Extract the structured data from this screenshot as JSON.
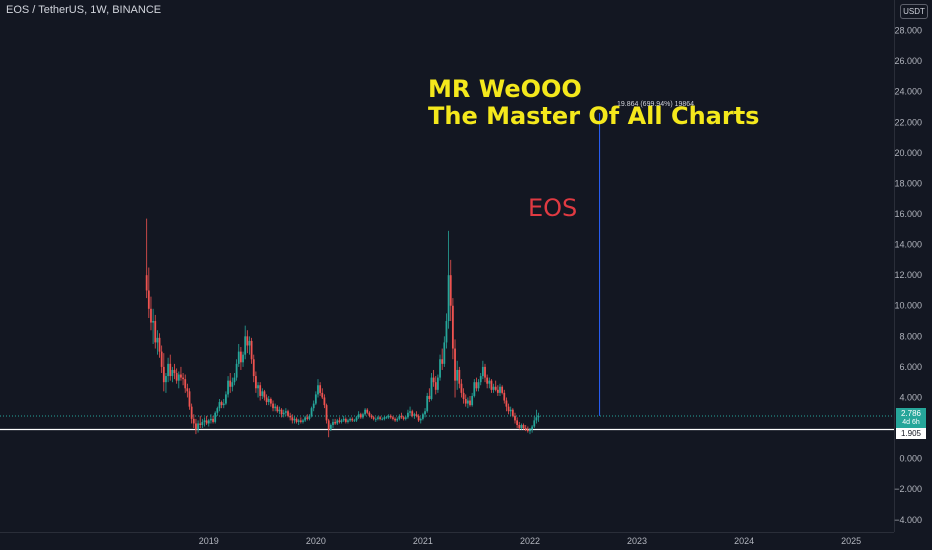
{
  "header": {
    "symbol": "EOS / TetherUS",
    "interval": "1W",
    "exchange": "BINANCE"
  },
  "currency_badge": "USDT",
  "annotations": {
    "title_line1": "MR WeOOO",
    "title_line2": "The Master Of All Charts",
    "coin_label": "EOS",
    "measure_label": "19.864 (699.94%) 19864"
  },
  "price_tags": {
    "last_price": "2.786",
    "countdown": "4d 6h",
    "hline_price": "1.905"
  },
  "colors": {
    "background": "#131722",
    "up": "#26a69a",
    "down": "#ef5350",
    "grid": "#1c2030",
    "axis_text": "#b2b5be",
    "title_annotation": "#f4e81c",
    "eos_annotation": "#e03a42",
    "measure_line": "#2962ff",
    "hline": "#ffffff"
  },
  "chart_data": {
    "type": "candlestick",
    "title": "EOS / TetherUS, 1W, BINANCE",
    "xlabel": "",
    "ylabel": "",
    "ylim": [
      -4.8,
      30.0
    ],
    "xlim": [
      2017.05,
      2025.4
    ],
    "yticks": [
      "28.000",
      "26.000",
      "24.000",
      "22.000",
      "20.000",
      "18.000",
      "16.000",
      "14.000",
      "12.000",
      "10.000",
      "8.000",
      "6.000",
      "4.000",
      "2.000",
      "0.000",
      "−2.000",
      "−4.000"
    ],
    "xticks": [
      "2019",
      "2020",
      "2021",
      "2022",
      "2023",
      "2024",
      "2025"
    ],
    "grid": false,
    "horizontal_line": 1.905,
    "last_price_line": 2.786,
    "measure_line": {
      "x": 2022.65,
      "from": 2.8,
      "to": 22.6
    },
    "ohlc": [
      [
        2018.42,
        12.0,
        15.7,
        10.5,
        11.0
      ],
      [
        2018.44,
        11.0,
        12.5,
        9.2,
        9.8
      ],
      [
        2018.46,
        9.8,
        10.6,
        8.4,
        8.9
      ],
      [
        2018.48,
        8.9,
        9.8,
        7.5,
        9.0
      ],
      [
        2018.5,
        9.0,
        9.4,
        7.2,
        7.6
      ],
      [
        2018.52,
        7.6,
        8.4,
        6.8,
        7.9
      ],
      [
        2018.54,
        7.9,
        8.2,
        6.6,
        7.0
      ],
      [
        2018.56,
        7.0,
        7.4,
        5.6,
        6.0
      ],
      [
        2018.58,
        6.0,
        6.9,
        4.4,
        5.0
      ],
      [
        2018.6,
        5.0,
        5.6,
        4.3,
        5.4
      ],
      [
        2018.62,
        5.4,
        6.6,
        5.0,
        6.2
      ],
      [
        2018.64,
        6.2,
        6.8,
        5.1,
        5.4
      ],
      [
        2018.66,
        5.4,
        6.0,
        5.0,
        5.8
      ],
      [
        2018.68,
        5.8,
        6.2,
        5.2,
        5.6
      ],
      [
        2018.7,
        5.6,
        5.9,
        4.9,
        5.1
      ],
      [
        2018.72,
        5.1,
        5.7,
        4.6,
        5.5
      ],
      [
        2018.74,
        5.5,
        6.0,
        5.1,
        5.3
      ],
      [
        2018.76,
        5.3,
        5.6,
        4.8,
        5.2
      ],
      [
        2018.78,
        5.2,
        5.5,
        4.3,
        4.6
      ],
      [
        2018.8,
        4.6,
        4.9,
        4.0,
        4.4
      ],
      [
        2018.82,
        4.4,
        4.6,
        3.2,
        3.4
      ],
      [
        2018.84,
        3.4,
        3.6,
        2.3,
        2.6
      ],
      [
        2018.86,
        2.6,
        2.9,
        2.0,
        2.3
      ],
      [
        2018.88,
        2.3,
        2.6,
        1.6,
        1.9
      ],
      [
        2018.9,
        1.9,
        2.5,
        1.7,
        2.3
      ],
      [
        2018.92,
        2.3,
        2.8,
        2.0,
        2.2
      ],
      [
        2018.94,
        2.2,
        2.6,
        2.0,
        2.4
      ],
      [
        2018.96,
        2.4,
        2.7,
        2.1,
        2.5
      ],
      [
        2018.98,
        2.5,
        2.8,
        2.2,
        2.3
      ],
      [
        2019.0,
        2.3,
        2.6,
        2.1,
        2.5
      ],
      [
        2019.02,
        2.5,
        2.9,
        2.3,
        2.6
      ],
      [
        2019.04,
        2.6,
        2.8,
        2.3,
        2.4
      ],
      [
        2019.06,
        2.4,
        3.1,
        2.3,
        3.0
      ],
      [
        2019.08,
        3.0,
        3.4,
        2.8,
        3.3
      ],
      [
        2019.1,
        3.3,
        3.9,
        3.1,
        3.7
      ],
      [
        2019.12,
        3.7,
        3.8,
        3.3,
        3.5
      ],
      [
        2019.14,
        3.5,
        3.9,
        3.3,
        3.6
      ],
      [
        2019.16,
        3.6,
        4.4,
        3.5,
        4.2
      ],
      [
        2019.18,
        4.2,
        5.4,
        4.0,
        5.1
      ],
      [
        2019.2,
        5.1,
        5.6,
        4.3,
        4.7
      ],
      [
        2019.22,
        4.7,
        5.3,
        4.4,
        5.0
      ],
      [
        2019.24,
        5.0,
        5.6,
        4.8,
        5.3
      ],
      [
        2019.26,
        5.3,
        6.5,
        5.1,
        6.2
      ],
      [
        2019.28,
        6.2,
        7.5,
        6.0,
        7.0
      ],
      [
        2019.3,
        7.0,
        7.3,
        5.8,
        6.3
      ],
      [
        2019.32,
        6.3,
        7.0,
        6.0,
        6.8
      ],
      [
        2019.34,
        6.8,
        8.7,
        6.5,
        8.0
      ],
      [
        2019.36,
        8.0,
        8.4,
        6.9,
        7.4
      ],
      [
        2019.38,
        7.4,
        8.0,
        6.8,
        7.7
      ],
      [
        2019.4,
        7.7,
        7.9,
        6.2,
        6.5
      ],
      [
        2019.42,
        6.5,
        6.8,
        5.0,
        5.4
      ],
      [
        2019.44,
        5.4,
        5.7,
        4.3,
        4.6
      ],
      [
        2019.46,
        4.6,
        5.0,
        4.0,
        4.8
      ],
      [
        2019.48,
        4.8,
        5.0,
        3.8,
        4.1
      ],
      [
        2019.5,
        4.1,
        4.6,
        3.9,
        4.4
      ],
      [
        2019.52,
        4.4,
        4.5,
        3.8,
        4.0
      ],
      [
        2019.54,
        4.0,
        4.2,
        3.5,
        3.7
      ],
      [
        2019.56,
        3.7,
        4.1,
        3.5,
        3.9
      ],
      [
        2019.58,
        3.9,
        4.0,
        3.4,
        3.6
      ],
      [
        2019.6,
        3.6,
        3.8,
        3.1,
        3.3
      ],
      [
        2019.62,
        3.3,
        3.6,
        3.1,
        3.4
      ],
      [
        2019.64,
        3.4,
        3.5,
        3.0,
        3.1
      ],
      [
        2019.66,
        3.1,
        3.4,
        2.9,
        3.2
      ],
      [
        2019.68,
        3.2,
        3.3,
        2.7,
        2.9
      ],
      [
        2019.7,
        2.9,
        3.2,
        2.7,
        3.0
      ],
      [
        2019.72,
        3.0,
        3.3,
        2.8,
        3.1
      ],
      [
        2019.74,
        3.1,
        3.2,
        2.7,
        2.8
      ],
      [
        2019.76,
        2.8,
        3.0,
        2.5,
        2.7
      ],
      [
        2019.78,
        2.7,
        2.9,
        2.3,
        2.5
      ],
      [
        2019.8,
        2.5,
        2.8,
        2.3,
        2.6
      ],
      [
        2019.82,
        2.6,
        2.7,
        2.3,
        2.4
      ],
      [
        2019.84,
        2.4,
        2.6,
        2.2,
        2.5
      ],
      [
        2019.86,
        2.5,
        2.7,
        2.3,
        2.4
      ],
      [
        2019.88,
        2.4,
        2.6,
        2.3,
        2.5
      ],
      [
        2019.9,
        2.5,
        2.8,
        2.4,
        2.7
      ],
      [
        2019.92,
        2.7,
        2.9,
        2.5,
        2.6
      ],
      [
        2019.94,
        2.6,
        2.9,
        2.5,
        2.8
      ],
      [
        2019.96,
        2.8,
        3.4,
        2.7,
        3.3
      ],
      [
        2019.98,
        3.3,
        3.8,
        3.1,
        3.6
      ],
      [
        2020.0,
        3.6,
        4.4,
        3.5,
        4.2
      ],
      [
        2020.02,
        4.2,
        5.2,
        4.0,
        4.8
      ],
      [
        2020.04,
        4.8,
        5.0,
        4.1,
        4.3
      ],
      [
        2020.06,
        4.3,
        4.6,
        3.9,
        4.0
      ],
      [
        2020.08,
        4.0,
        4.2,
        3.3,
        3.5
      ],
      [
        2020.1,
        3.5,
        3.6,
        2.3,
        2.5
      ],
      [
        2020.12,
        2.5,
        2.6,
        1.4,
        1.9
      ],
      [
        2020.14,
        1.9,
        2.3,
        1.8,
        2.2
      ],
      [
        2020.16,
        2.2,
        2.6,
        2.0,
        2.4
      ],
      [
        2020.18,
        2.4,
        2.6,
        2.2,
        2.3
      ],
      [
        2020.2,
        2.3,
        2.6,
        2.2,
        2.5
      ],
      [
        2020.22,
        2.5,
        2.7,
        2.3,
        2.4
      ],
      [
        2020.24,
        2.4,
        2.6,
        2.3,
        2.5
      ],
      [
        2020.26,
        2.5,
        2.8,
        2.4,
        2.6
      ],
      [
        2020.28,
        2.6,
        2.7,
        2.3,
        2.4
      ],
      [
        2020.3,
        2.4,
        2.6,
        2.3,
        2.5
      ],
      [
        2020.32,
        2.5,
        2.7,
        2.4,
        2.6
      ],
      [
        2020.34,
        2.6,
        2.7,
        2.4,
        2.5
      ],
      [
        2020.36,
        2.5,
        2.6,
        2.4,
        2.5
      ],
      [
        2020.38,
        2.5,
        2.8,
        2.4,
        2.7
      ],
      [
        2020.4,
        2.7,
        3.1,
        2.6,
        2.9
      ],
      [
        2020.42,
        2.9,
        3.0,
        2.6,
        2.7
      ],
      [
        2020.44,
        2.7,
        3.0,
        2.6,
        2.9
      ],
      [
        2020.46,
        2.9,
        3.3,
        2.8,
        3.2
      ],
      [
        2020.48,
        3.2,
        3.3,
        2.9,
        3.0
      ],
      [
        2020.5,
        3.0,
        3.1,
        2.7,
        2.8
      ],
      [
        2020.52,
        2.8,
        2.9,
        2.6,
        2.7
      ],
      [
        2020.54,
        2.7,
        2.8,
        2.5,
        2.6
      ],
      [
        2020.56,
        2.6,
        2.7,
        2.4,
        2.6
      ],
      [
        2020.58,
        2.6,
        2.8,
        2.5,
        2.7
      ],
      [
        2020.6,
        2.7,
        2.8,
        2.5,
        2.6
      ],
      [
        2020.62,
        2.6,
        2.7,
        2.5,
        2.6
      ],
      [
        2020.64,
        2.6,
        2.8,
        2.5,
        2.7
      ],
      [
        2020.66,
        2.7,
        2.8,
        2.6,
        2.7
      ],
      [
        2020.68,
        2.7,
        2.9,
        2.6,
        2.8
      ],
      [
        2020.7,
        2.8,
        2.9,
        2.6,
        2.7
      ],
      [
        2020.72,
        2.7,
        2.8,
        2.5,
        2.6
      ],
      [
        2020.74,
        2.6,
        2.7,
        2.4,
        2.5
      ],
      [
        2020.76,
        2.5,
        2.7,
        2.4,
        2.6
      ],
      [
        2020.78,
        2.6,
        2.9,
        2.5,
        2.8
      ],
      [
        2020.8,
        2.8,
        3.0,
        2.6,
        2.7
      ],
      [
        2020.82,
        2.7,
        2.8,
        2.5,
        2.6
      ],
      [
        2020.84,
        2.6,
        2.8,
        2.5,
        2.7
      ],
      [
        2020.86,
        2.7,
        3.2,
        2.6,
        3.0
      ],
      [
        2020.88,
        3.0,
        3.4,
        2.8,
        3.1
      ],
      [
        2020.9,
        3.1,
        3.2,
        2.7,
        2.8
      ],
      [
        2020.92,
        2.8,
        3.0,
        2.6,
        2.9
      ],
      [
        2020.94,
        2.9,
        3.1,
        2.7,
        2.8
      ],
      [
        2020.96,
        2.8,
        2.9,
        2.4,
        2.5
      ],
      [
        2020.98,
        2.5,
        2.7,
        2.3,
        2.6
      ],
      [
        2021.0,
        2.6,
        3.0,
        2.5,
        2.9
      ],
      [
        2021.02,
        2.9,
        3.3,
        2.7,
        3.1
      ],
      [
        2021.04,
        3.1,
        4.3,
        3.0,
        4.1
      ],
      [
        2021.06,
        4.1,
        4.6,
        3.7,
        3.9
      ],
      [
        2021.08,
        3.9,
        5.6,
        3.8,
        5.3
      ],
      [
        2021.1,
        5.3,
        5.8,
        4.7,
        5.0
      ],
      [
        2021.12,
        5.0,
        5.4,
        4.2,
        4.5
      ],
      [
        2021.14,
        4.5,
        5.5,
        4.3,
        5.3
      ],
      [
        2021.16,
        5.3,
        6.8,
        5.1,
        6.5
      ],
      [
        2021.18,
        6.5,
        7.2,
        5.8,
        6.2
      ],
      [
        2021.2,
        6.2,
        8.0,
        6.0,
        7.6
      ],
      [
        2021.22,
        7.6,
        9.5,
        7.2,
        9.0
      ],
      [
        2021.24,
        9.0,
        14.9,
        8.5,
        12.0
      ],
      [
        2021.26,
        12.0,
        13.0,
        9.0,
        10.0
      ],
      [
        2021.28,
        10.0,
        10.5,
        6.5,
        7.2
      ],
      [
        2021.3,
        7.2,
        7.8,
        4.0,
        5.1
      ],
      [
        2021.32,
        5.1,
        6.4,
        4.5,
        5.8
      ],
      [
        2021.34,
        5.8,
        6.0,
        4.6,
        4.9
      ],
      [
        2021.36,
        4.9,
        5.2,
        4.0,
        4.3
      ],
      [
        2021.38,
        4.3,
        4.6,
        3.6,
        3.9
      ],
      [
        2021.4,
        3.9,
        4.2,
        3.4,
        3.6
      ],
      [
        2021.42,
        3.6,
        4.0,
        3.3,
        3.8
      ],
      [
        2021.44,
        3.8,
        4.1,
        3.4,
        3.5
      ],
      [
        2021.46,
        3.5,
        4.3,
        3.4,
        4.1
      ],
      [
        2021.48,
        4.1,
        5.2,
        4.0,
        5.0
      ],
      [
        2021.5,
        5.0,
        5.3,
        4.4,
        4.6
      ],
      [
        2021.52,
        4.6,
        5.2,
        4.4,
        5.0
      ],
      [
        2021.54,
        5.0,
        5.6,
        4.8,
        5.4
      ],
      [
        2021.56,
        5.4,
        6.4,
        5.2,
        6.0
      ],
      [
        2021.58,
        6.0,
        6.2,
        5.0,
        5.3
      ],
      [
        2021.6,
        5.3,
        5.5,
        4.6,
        4.9
      ],
      [
        2021.62,
        4.9,
        5.3,
        4.6,
        5.1
      ],
      [
        2021.64,
        5.1,
        5.2,
        4.3,
        4.5
      ],
      [
        2021.66,
        4.5,
        4.9,
        4.3,
        4.7
      ],
      [
        2021.68,
        4.7,
        5.1,
        4.4,
        4.5
      ],
      [
        2021.7,
        4.5,
        4.8,
        4.1,
        4.3
      ],
      [
        2021.72,
        4.3,
        4.9,
        4.1,
        4.7
      ],
      [
        2021.74,
        4.7,
        4.8,
        4.2,
        4.3
      ],
      [
        2021.76,
        4.3,
        4.5,
        3.6,
        3.8
      ],
      [
        2021.78,
        3.8,
        4.0,
        3.1,
        3.4
      ],
      [
        2021.8,
        3.4,
        3.6,
        2.9,
        3.1
      ],
      [
        2021.82,
        3.1,
        3.4,
        2.8,
        3.2
      ],
      [
        2021.84,
        3.2,
        3.3,
        2.7,
        2.8
      ],
      [
        2021.86,
        2.8,
        3.0,
        2.3,
        2.5
      ],
      [
        2021.88,
        2.5,
        2.7,
        2.0,
        2.2
      ],
      [
        2021.9,
        2.2,
        2.4,
        1.9,
        2.0
      ],
      [
        2021.92,
        2.0,
        2.3,
        1.9,
        2.2
      ],
      [
        2021.94,
        2.2,
        2.3,
        1.9,
        2.0
      ],
      [
        2021.96,
        2.0,
        2.2,
        1.8,
        1.9
      ],
      [
        2021.98,
        1.9,
        2.1,
        1.7,
        1.8
      ],
      [
        2022.0,
        1.8,
        2.0,
        1.6,
        1.9
      ],
      [
        2022.02,
        1.9,
        2.2,
        1.7,
        2.1
      ],
      [
        2022.04,
        2.1,
        2.8,
        2.0,
        2.5
      ],
      [
        2022.06,
        2.5,
        3.2,
        2.3,
        2.7
      ],
      [
        2022.08,
        2.7,
        3.0,
        2.4,
        2.8
      ]
    ]
  }
}
